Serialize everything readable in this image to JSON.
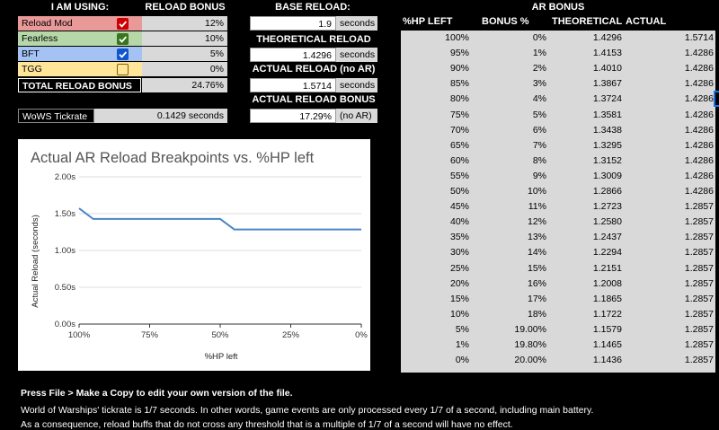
{
  "left_panel": {
    "header_using": "I AM USING:",
    "header_bonus": "RELOAD BONUS",
    "items": [
      {
        "label": "Reload Mod",
        "bonus": "12%",
        "checked": true,
        "bg": "#ea9999",
        "check_color": "#cc0000"
      },
      {
        "label": "Fearless",
        "bonus": "10%",
        "checked": true,
        "bg": "#b6d7a8",
        "check_color": "#38761d"
      },
      {
        "label": "BFT",
        "bonus": "5%",
        "checked": true,
        "bg": "#a4c2f4",
        "check_color": "#1155cc"
      },
      {
        "label": "TGG",
        "bonus": "0%",
        "checked": false,
        "bg": "#ffe599",
        "check_color": "#7f6000"
      }
    ],
    "total_label": "TOTAL RELOAD BONUS",
    "total_value": "24.76%",
    "tickrate_label": "WoWS Tickrate",
    "tickrate_value": "0.1429 seconds"
  },
  "middle_panel": {
    "base_reload_label": "BASE RELOAD:",
    "base_reload_value": "1.9",
    "base_reload_unit": "seconds",
    "theoretical_label": "THEORETICAL RELOAD",
    "theoretical_value": "1.4296",
    "theoretical_unit": "seconds",
    "actual_label": "ACTUAL RELOAD (no AR)",
    "actual_value": "1.5714",
    "actual_unit": "seconds",
    "actual_bonus_label": "ACTUAL RELOAD BONUS",
    "actual_bonus_value": "17.29%",
    "actual_bonus_note": "(no AR)"
  },
  "ar_table": {
    "title": "AR BONUS",
    "headers": [
      "%HP LEFT",
      "BONUS %",
      "THEORETICAL",
      "ACTUAL"
    ],
    "rows": [
      [
        "100%",
        "0%",
        "1.4296",
        "1.5714"
      ],
      [
        "95%",
        "1%",
        "1.4153",
        "1.4286"
      ],
      [
        "90%",
        "2%",
        "1.4010",
        "1.4286"
      ],
      [
        "85%",
        "3%",
        "1.3867",
        "1.4286"
      ],
      [
        "80%",
        "4%",
        "1.3724",
        "1.4286"
      ],
      [
        "75%",
        "5%",
        "1.3581",
        "1.4286"
      ],
      [
        "70%",
        "6%",
        "1.3438",
        "1.4286"
      ],
      [
        "65%",
        "7%",
        "1.3295",
        "1.4286"
      ],
      [
        "60%",
        "8%",
        "1.3152",
        "1.4286"
      ],
      [
        "55%",
        "9%",
        "1.3009",
        "1.4286"
      ],
      [
        "50%",
        "10%",
        "1.2866",
        "1.4286"
      ],
      [
        "45%",
        "11%",
        "1.2723",
        "1.2857"
      ],
      [
        "40%",
        "12%",
        "1.2580",
        "1.2857"
      ],
      [
        "35%",
        "13%",
        "1.2437",
        "1.2857"
      ],
      [
        "30%",
        "14%",
        "1.2294",
        "1.2857"
      ],
      [
        "25%",
        "15%",
        "1.2151",
        "1.2857"
      ],
      [
        "20%",
        "16%",
        "1.2008",
        "1.2857"
      ],
      [
        "15%",
        "17%",
        "1.1865",
        "1.2857"
      ],
      [
        "10%",
        "18%",
        "1.1722",
        "1.2857"
      ],
      [
        "5%",
        "19.00%",
        "1.1579",
        "1.2857"
      ],
      [
        "1%",
        "19.80%",
        "1.1465",
        "1.2857"
      ],
      [
        "0%",
        "20.00%",
        "1.1436",
        "1.2857"
      ]
    ]
  },
  "notes": {
    "line1": "Press File > Make a Copy to edit your own version of the file.",
    "line2": "World of Warships' tickrate is 1/7 seconds. In other words, game events are only processed every 1/7 of a second, including main battery.",
    "line3": "As a consequence, reload buffs that do not cross any threshold that is a multiple of 1/7 of a second will have no effect."
  },
  "chart_data": {
    "type": "line",
    "title": "Actual AR Reload Breakpoints vs. %HP left",
    "xlabel": "%HP left",
    "ylabel": "Actual Reload (seconds)",
    "x": [
      100,
      95,
      90,
      85,
      80,
      75,
      70,
      65,
      60,
      55,
      50,
      45,
      40,
      35,
      30,
      25,
      20,
      15,
      10,
      5,
      1,
      0
    ],
    "y": [
      1.5714,
      1.4286,
      1.4286,
      1.4286,
      1.4286,
      1.4286,
      1.4286,
      1.4286,
      1.4286,
      1.4286,
      1.4286,
      1.2857,
      1.2857,
      1.2857,
      1.2857,
      1.2857,
      1.2857,
      1.2857,
      1.2857,
      1.2857,
      1.2857,
      1.2857
    ],
    "xlim": [
      100,
      0
    ],
    "ylim": [
      0,
      2.0
    ],
    "xticks": [
      "100%",
      "75%",
      "50%",
      "25%",
      "0%"
    ],
    "yticks": [
      "0.00s",
      "0.50s",
      "1.00s",
      "1.50s",
      "2.00s"
    ],
    "series_color": "#4a86c8",
    "grid": true
  }
}
